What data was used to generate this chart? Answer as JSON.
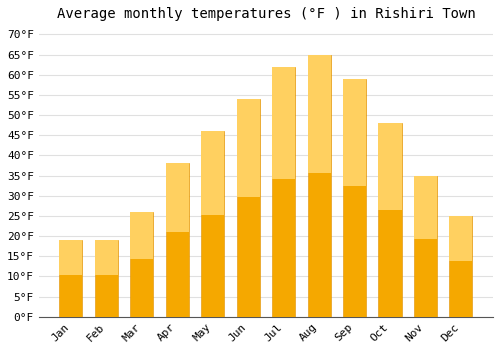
{
  "title": "Average monthly temperatures (°F ) in Rishiri Town",
  "months": [
    "Jan",
    "Feb",
    "Mar",
    "Apr",
    "May",
    "Jun",
    "Jul",
    "Aug",
    "Sep",
    "Oct",
    "Nov",
    "Dec"
  ],
  "values": [
    19,
    19,
    26,
    38,
    46,
    54,
    62,
    65,
    59,
    48,
    35,
    25
  ],
  "bar_color_bottom": "#F5A800",
  "bar_color_top": "#FFD060",
  "background_color": "#FFFFFF",
  "grid_color": "#E0E0E0",
  "yticks": [
    0,
    5,
    10,
    15,
    20,
    25,
    30,
    35,
    40,
    45,
    50,
    55,
    60,
    65,
    70
  ],
  "ylim": [
    0,
    72
  ],
  "title_fontsize": 10,
  "tick_fontsize": 8,
  "font_family": "monospace"
}
